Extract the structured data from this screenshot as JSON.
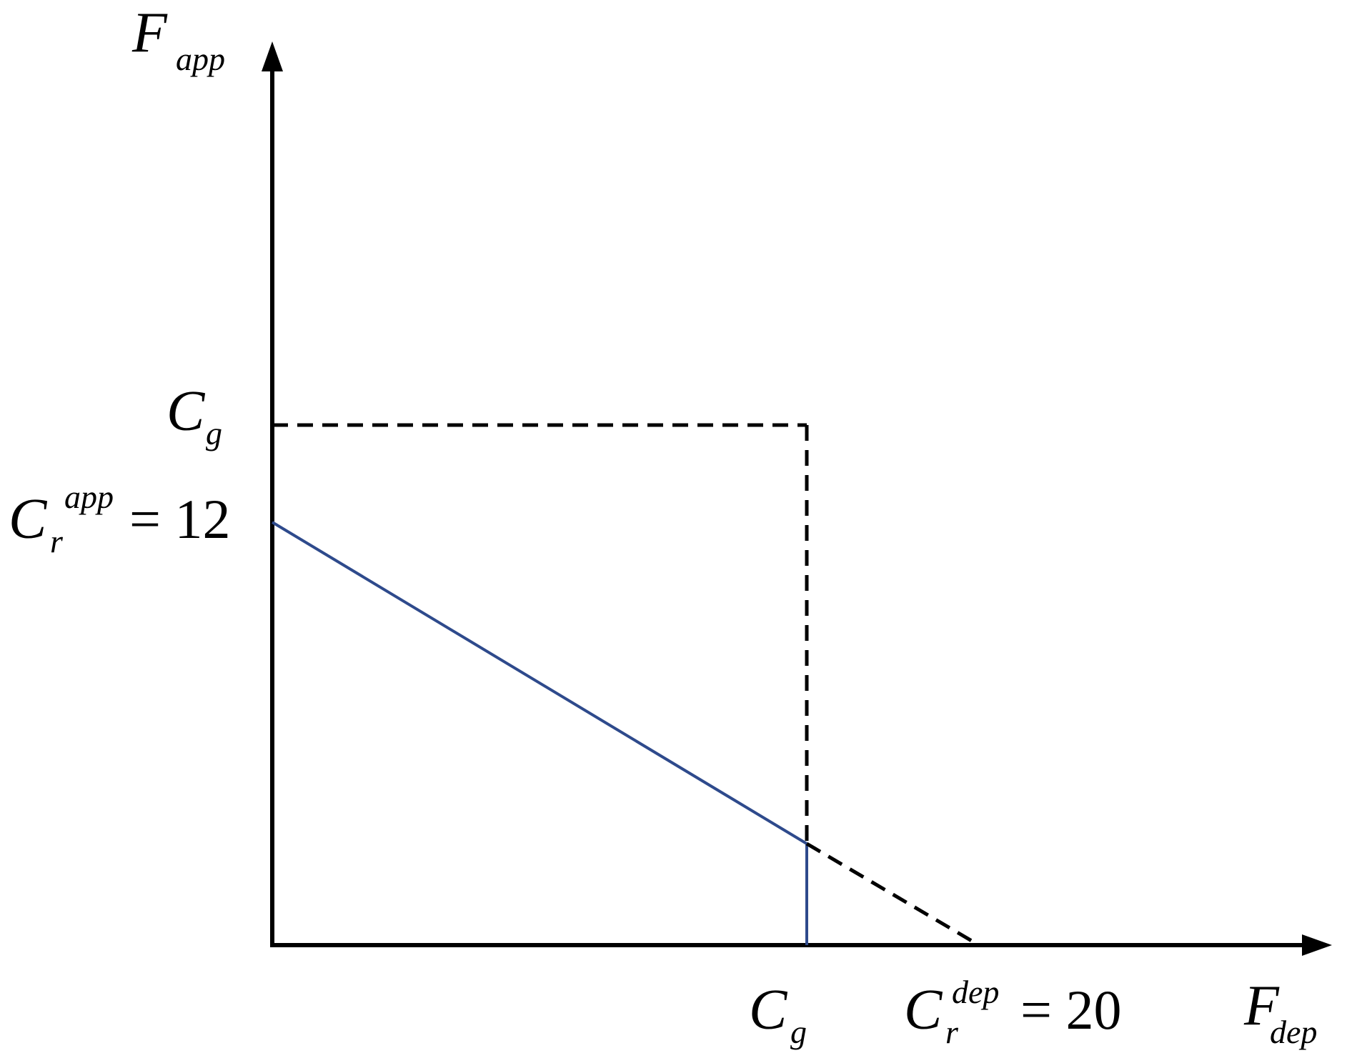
{
  "y_axis": {
    "symbol": "F",
    "subscript": "app"
  },
  "x_axis": {
    "symbol": "F",
    "subscript": "dep"
  },
  "y_labels": [
    {
      "symbol": "C",
      "subscript": "g"
    },
    {
      "symbol": "C",
      "subscript": "r",
      "superscript": "app",
      "equation": "= 12"
    }
  ],
  "x_labels": [
    {
      "symbol": "C",
      "subscript": "g"
    },
    {
      "symbol": "C",
      "subscript": "r",
      "superscript": "dep",
      "equation": "= 20"
    }
  ]
}
